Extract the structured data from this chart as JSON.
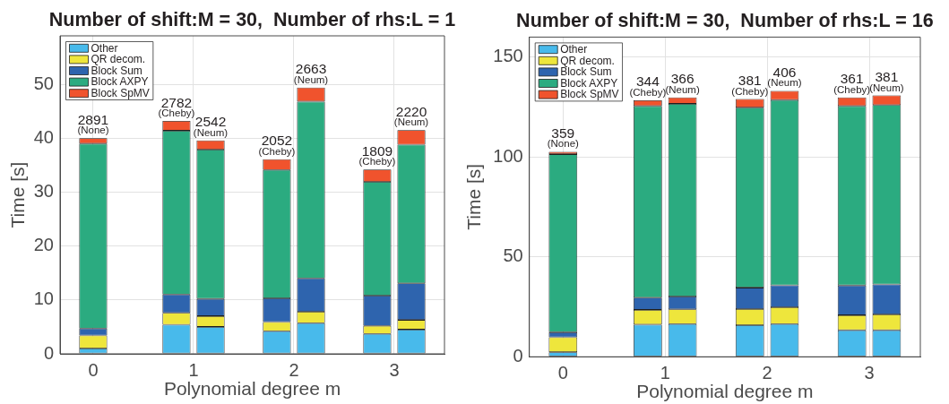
{
  "chart_data": [
    {
      "type": "bar",
      "stacked": true,
      "title": "Number of shift:M = 30,  Number of rhs:L = 1",
      "xlabel": "Polynomial degree m",
      "ylabel": "Time [s]",
      "x": [
        0,
        0.83,
        1.17,
        1.83,
        2.17,
        2.83,
        3.17
      ],
      "series": [
        {
          "name": "Other",
          "color": "#48baeb",
          "values": [
            1.0,
            5.4,
            5.0,
            4.2,
            5.7,
            3.7,
            4.5
          ]
        },
        {
          "name": "QR decom.",
          "color": "#eee63c",
          "values": [
            2.4,
            2.2,
            2.0,
            1.7,
            2.1,
            1.5,
            1.8
          ]
        },
        {
          "name": "Block Sum",
          "color": "#2e64ae",
          "values": [
            1.3,
            3.4,
            3.2,
            4.4,
            6.2,
            5.6,
            6.8
          ]
        },
        {
          "name": "Block AXPY",
          "color": "#2bab80",
          "values": [
            34.3,
            30.4,
            27.7,
            23.8,
            32.8,
            21.1,
            25.7
          ]
        },
        {
          "name": "Block SpMV",
          "color": "#f0532d",
          "values": [
            1.0,
            1.8,
            1.7,
            2.0,
            2.6,
            2.3,
            2.7
          ]
        }
      ],
      "xlim": [
        -0.33,
        3.5
      ],
      "xticks": [
        0,
        1,
        2,
        3
      ],
      "ylim": [
        0,
        59
      ],
      "yticks": [
        0,
        10,
        20,
        30,
        40,
        50
      ],
      "grid": true,
      "legend": "top left",
      "annotations": [
        {
          "text": "2891\n(None)",
          "x": 0,
          "y": 40.0
        },
        {
          "text": "2782\n(Cheby)",
          "x": 0.83,
          "y": 43.2
        },
        {
          "text": "2542\n(Neum)",
          "x": 1.17,
          "y": 39.6
        },
        {
          "text": "2052\n(Cheby)",
          "x": 1.83,
          "y": 36.1
        },
        {
          "text": "2663\n(Neum)",
          "x": 2.17,
          "y": 49.4
        },
        {
          "text": "1809\n(Cheby)",
          "x": 2.83,
          "y": 34.2
        },
        {
          "text": "2220\n(Neum)",
          "x": 3.17,
          "y": 41.5
        }
      ]
    },
    {
      "type": "bar",
      "stacked": true,
      "title": "Number of shift:M = 30,  Number of rhs:L = 16",
      "xlabel": "Polynomial degree m",
      "ylabel": "Time [s]",
      "x": [
        0,
        0.83,
        1.17,
        1.83,
        2.17,
        2.83,
        3.17
      ],
      "series": [
        {
          "name": "Other",
          "color": "#48baeb",
          "values": [
            2.3,
            16.1,
            16.4,
            15.8,
            16.4,
            13.3,
            13.3
          ]
        },
        {
          "name": "QR decom.",
          "color": "#eee63c",
          "values": [
            7.5,
            7.4,
            7.4,
            8.1,
            8.4,
            7.5,
            7.9
          ]
        },
        {
          "name": "Block Sum",
          "color": "#2e64ae",
          "values": [
            2.5,
            6.1,
            6.4,
            10.7,
            11.0,
            14.9,
            15.0
          ]
        },
        {
          "name": "Block AXPY",
          "color": "#2bab80",
          "values": [
            89.1,
            95.9,
            96.4,
            90.1,
            92.7,
            89.8,
            89.8
          ]
        },
        {
          "name": "Block SpMV",
          "color": "#f0532d",
          "values": [
            1.2,
            2.9,
            3.2,
            4.3,
            4.6,
            4.3,
            4.8
          ]
        }
      ],
      "xlim": [
        -0.33,
        3.5
      ],
      "xticks": [
        0,
        1,
        2,
        3
      ],
      "ylim": [
        0,
        160
      ],
      "yticks": [
        0,
        50,
        100,
        150
      ],
      "grid": true,
      "legend": "top left",
      "annotations": [
        {
          "text": "359\n(None)",
          "x": 0,
          "y": 102.6
        },
        {
          "text": "344\n(Cheby)",
          "x": 0.83,
          "y": 128.4
        },
        {
          "text": "366\n(Neum)",
          "x": 1.17,
          "y": 129.8
        },
        {
          "text": "381\n(Cheby)",
          "x": 1.83,
          "y": 129.0
        },
        {
          "text": "406\n(Neum)",
          "x": 2.17,
          "y": 133.1
        },
        {
          "text": "361\n(Cheby)",
          "x": 2.83,
          "y": 129.8
        },
        {
          "text": "381\n(Neum)",
          "x": 3.17,
          "y": 130.8
        }
      ]
    }
  ]
}
